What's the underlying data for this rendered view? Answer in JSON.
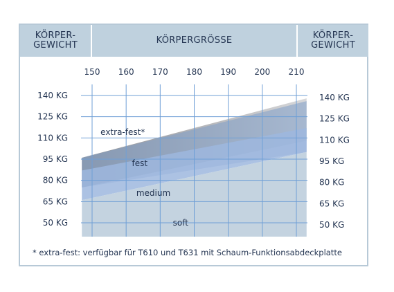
{
  "header": {
    "left_line1": "KÖRPER-",
    "left_line2": "GEWICHT",
    "center": "KÖRPERGRÖSSE",
    "right_line1": "KÖRPER-",
    "right_line2": "GEWICHT"
  },
  "footnote": "* extra-fest: verfügbar für T610 und T631 mit Schaum-Funktionsabdeckplatte",
  "colors": {
    "header_bg": "#bfd1de",
    "grid": "#6f9fd6",
    "extra_fest": "#9d9ea2",
    "fest": "#7f9ec8",
    "medium": "#9db7de",
    "soft": "#c4d3e0",
    "text": "#243552"
  },
  "chart_data": {
    "type": "area",
    "x_ticks": [
      150,
      160,
      170,
      180,
      190,
      200,
      210
    ],
    "y_ticks": [
      140,
      125,
      110,
      95,
      80,
      65,
      50
    ],
    "y_tick_labels": [
      "140 KG",
      "125 KG",
      "110 KG",
      "95 KG",
      "80 KG",
      "65 KG",
      "50 KG"
    ],
    "xlim": [
      147,
      213
    ],
    "ylim": [
      40,
      150
    ],
    "grid": true,
    "regions": [
      {
        "name": "soft",
        "label_at": [
          176,
          50
        ],
        "polygon": [
          [
            147,
            40
          ],
          [
            147,
            66
          ],
          [
            213,
            100
          ],
          [
            213,
            40
          ]
        ]
      },
      {
        "name": "medium",
        "label_at": [
          168,
          71
        ],
        "polygon": [
          [
            147,
            66
          ],
          [
            147,
            87
          ],
          [
            213,
            117
          ],
          [
            213,
            100
          ]
        ]
      },
      {
        "name": "fest",
        "label_at": [
          164,
          92
        ],
        "polygon": [
          [
            147,
            75
          ],
          [
            147,
            96
          ],
          [
            213,
            136
          ],
          [
            213,
            100
          ]
        ]
      },
      {
        "name": "extra-fest*",
        "label_at": [
          159,
          114
        ],
        "polygon": [
          [
            147,
            75
          ],
          [
            147,
            96
          ],
          [
            213,
            138
          ],
          [
            213,
            108
          ]
        ]
      }
    ]
  }
}
